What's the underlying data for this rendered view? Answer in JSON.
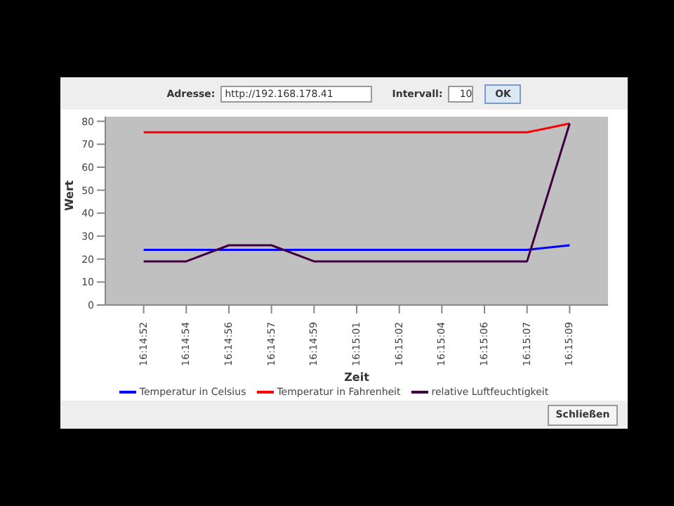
{
  "chart_data": {
    "type": "line",
    "xlabel": "Zeit",
    "ylabel": "Wert",
    "categories": [
      "16:14:52",
      "16:14:54",
      "16:14:56",
      "16:14:57",
      "16:14:59",
      "16:15:01",
      "16:15:02",
      "16:15:04",
      "16:15:06",
      "16:15:07",
      "16:15:09"
    ],
    "series": [
      {
        "name": "Temperatur in Celsius",
        "color": "#0000ff",
        "values": [
          24,
          24,
          24,
          24,
          24,
          24,
          24,
          24,
          24,
          24,
          26
        ]
      },
      {
        "name": "Temperatur in Fahrenheit",
        "color": "#ff0000",
        "values": [
          75.2,
          75.2,
          75.2,
          75.2,
          75.2,
          75.2,
          75.2,
          75.2,
          75.2,
          75.2,
          79
        ]
      },
      {
        "name": "relative Luftfeuchtigkeit",
        "color": "#400040",
        "values": [
          19,
          19,
          26,
          26,
          19,
          19,
          19,
          19,
          19,
          19,
          79
        ]
      }
    ],
    "ylim": [
      0,
      82
    ],
    "yticks": [
      0,
      10,
      20,
      30,
      40,
      50,
      60,
      70,
      80
    ],
    "grid": false,
    "legend": "bottom",
    "marker": "none",
    "line_style": "solid",
    "annotations": [
      "Adresse:",
      "http://192.168.178.41",
      "Intervall:",
      "10",
      "OK",
      "Schließen"
    ]
  }
}
